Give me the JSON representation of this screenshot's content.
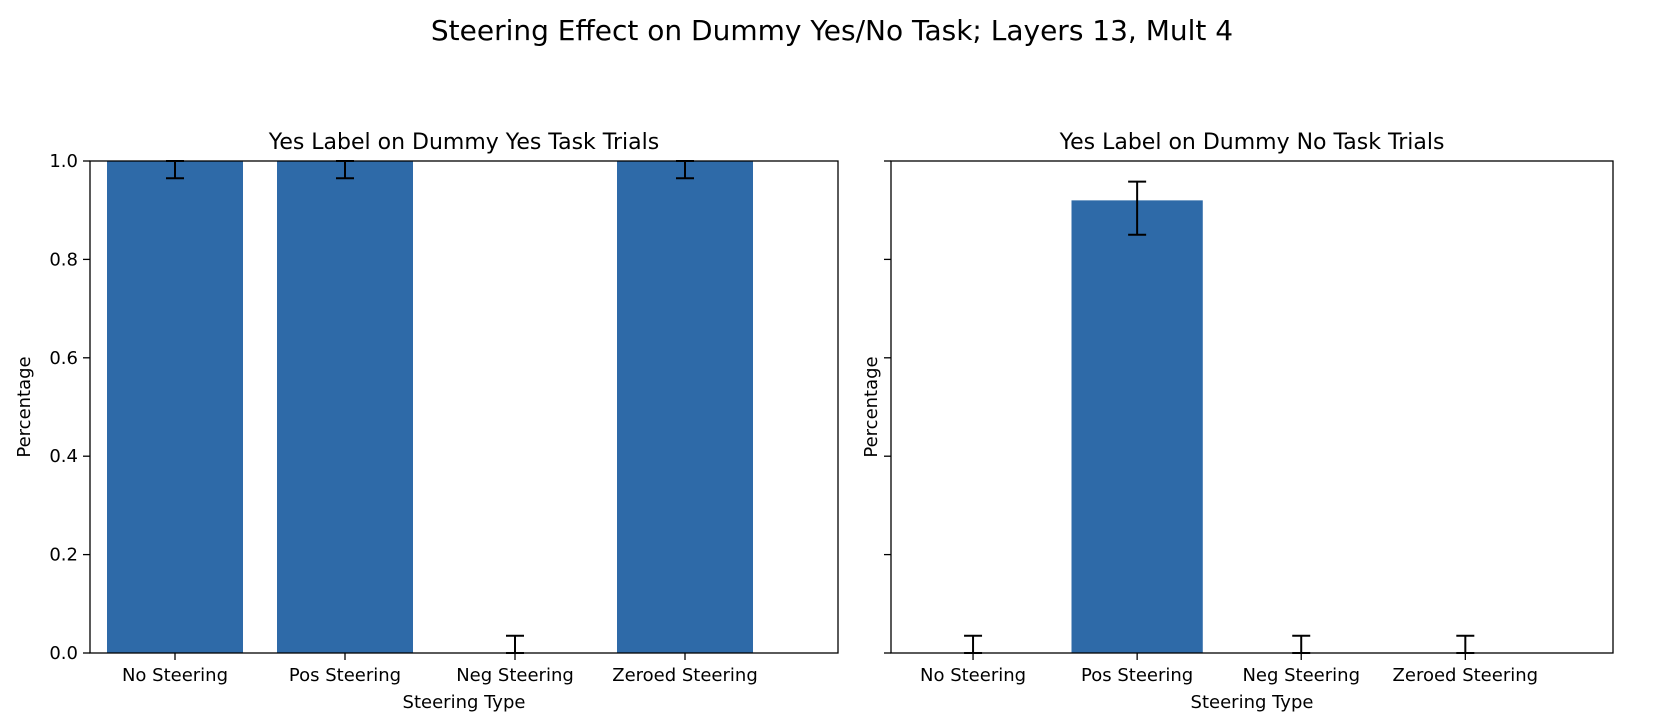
{
  "figure": {
    "suptitle": "Steering Effect on Dummy Yes/No Task; Layers 13, Mult 4",
    "bar_color": "#2e6aa8",
    "error_color": "#000000"
  },
  "chart_data": [
    {
      "type": "bar",
      "title": "Yes Label on Dummy Yes Task Trials",
      "xlabel": "Steering Type",
      "ylabel": "Percentage",
      "categories": [
        "No Steering",
        "Pos Steering",
        "Neg Steering",
        "Zeroed Steering"
      ],
      "values": [
        1.0,
        1.0,
        0.0,
        1.0
      ],
      "error_low": [
        0.965,
        0.965,
        0.0,
        0.965
      ],
      "error_high": [
        1.0,
        1.0,
        0.035,
        1.0
      ],
      "ylim": [
        0,
        1.0
      ],
      "yticks": [
        "0.0",
        "0.2",
        "0.4",
        "0.6",
        "0.8",
        "1.0"
      ],
      "show_ytick_labels": true,
      "grid": false
    },
    {
      "type": "bar",
      "title": "Yes Label on Dummy No Task Trials",
      "xlabel": "Steering Type",
      "ylabel": "Percentage",
      "categories": [
        "No Steering",
        "Pos Steering",
        "Neg Steering",
        "Zeroed Steering"
      ],
      "values": [
        0.0,
        0.92,
        0.0,
        0.0
      ],
      "error_low": [
        0.0,
        0.85,
        0.0,
        0.0
      ],
      "error_high": [
        0.035,
        0.958,
        0.035,
        0.035
      ],
      "ylim": [
        0,
        1.0
      ],
      "yticks": [
        "0.0",
        "0.2",
        "0.4",
        "0.6",
        "0.8",
        "1.0"
      ],
      "show_ytick_labels": false,
      "grid": false
    }
  ]
}
